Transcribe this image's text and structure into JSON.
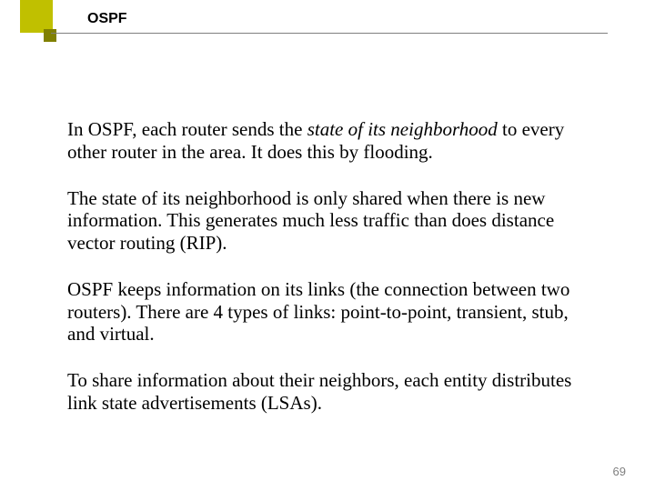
{
  "colors": {
    "square_main": "#c0c000",
    "square_small": "#808000",
    "underline": "#808080",
    "background": "#ffffff",
    "title_text": "#000000",
    "body_text": "#000000",
    "pagenum_text": "#808080"
  },
  "fonts": {
    "title_family": "Arial",
    "title_size_pt": 16,
    "title_weight": "bold",
    "body_family": "Times New Roman",
    "body_size_pt": 21,
    "pagenum_family": "Arial",
    "pagenum_size_pt": 13
  },
  "title": "OSPF",
  "paragraphs": {
    "p1_a": "In OSPF, each router sends the ",
    "p1_i": "state of its neighborhood",
    "p1_b": " to every other router in the area.  It does this by flooding.",
    "p2": "The state of its neighborhood is only shared when there is new information.  This generates much less traffic than does distance vector routing (RIP).",
    "p3": "OSPF keeps information on its links (the connection between two routers).  There are 4 types of links: point-to-point, transient, stub, and virtual.",
    "p4": "To share information about their neighbors, each entity distributes link state advertisements (LSAs)."
  },
  "page_number": "69"
}
